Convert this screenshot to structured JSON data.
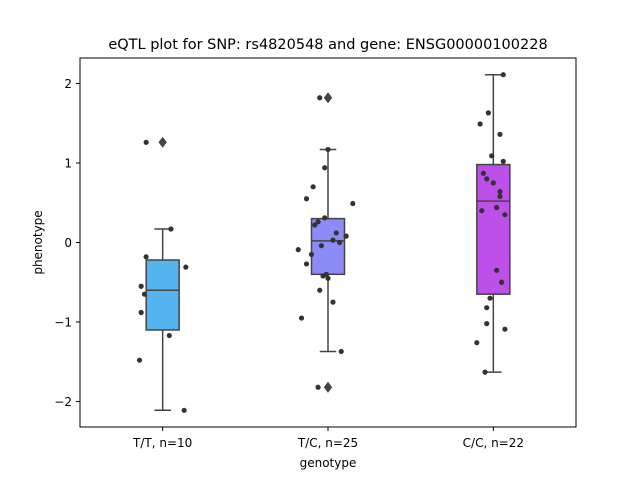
{
  "chart_data": {
    "type": "box",
    "title": "eQTL plot for SNP: rs4820548 and gene: ENSG00000100228",
    "xlabel": "genotype",
    "ylabel": "phenotype",
    "ylim": [
      -2.32,
      2.32
    ],
    "yticks": [
      2,
      1,
      0,
      -1,
      -2
    ],
    "ytick_labels": [
      "2",
      "1",
      "0",
      "−1",
      "−2"
    ],
    "grid": false,
    "categories": [
      "T/T, n=10",
      "T/C, n=25",
      "C/C, n=22"
    ],
    "colors": {
      "box_fills": [
        "#55b4ee",
        "#8d8cf6",
        "#bc50e8"
      ],
      "box_lines": "#444444",
      "points": "#333333",
      "axes": "#000000"
    },
    "boxes": [
      {
        "category": "T/T, n=10",
        "whisker_low": -2.11,
        "q1": -1.1,
        "median": -0.6,
        "q3": -0.22,
        "whisker_high": 0.17,
        "outliers": [
          1.26
        ]
      },
      {
        "category": "T/C, n=25",
        "whisker_low": -1.37,
        "q1": -0.4,
        "median": 0.02,
        "q3": 0.3,
        "whisker_high": 1.17,
        "outliers": [
          1.82,
          -1.82
        ]
      },
      {
        "category": "C/C, n=22",
        "whisker_low": -1.63,
        "q1": -0.65,
        "median": 0.52,
        "q3": 0.98,
        "whisker_high": 2.11,
        "outliers": []
      }
    ],
    "points": [
      [
        {
          "x": -0.1,
          "y": 1.26
        },
        {
          "x": 0.05,
          "y": 0.17
        },
        {
          "x": -0.1,
          "y": -0.18
        },
        {
          "x": 0.14,
          "y": -0.31
        },
        {
          "x": -0.13,
          "y": -0.55
        },
        {
          "x": -0.11,
          "y": -0.65
        },
        {
          "x": -0.13,
          "y": -0.88
        },
        {
          "x": 0.04,
          "y": -1.17
        },
        {
          "x": -0.14,
          "y": -1.48
        },
        {
          "x": 0.13,
          "y": -2.11
        }
      ],
      [
        {
          "x": -0.05,
          "y": 1.82
        },
        {
          "x": 0.0,
          "y": 1.17
        },
        {
          "x": -0.02,
          "y": 0.94
        },
        {
          "x": -0.09,
          "y": 0.7
        },
        {
          "x": -0.13,
          "y": 0.55
        },
        {
          "x": 0.15,
          "y": 0.49
        },
        {
          "x": -0.02,
          "y": 0.31
        },
        {
          "x": -0.06,
          "y": 0.26
        },
        {
          "x": -0.08,
          "y": 0.22
        },
        {
          "x": 0.05,
          "y": 0.12
        },
        {
          "x": 0.11,
          "y": 0.08
        },
        {
          "x": 0.03,
          "y": 0.03
        },
        {
          "x": 0.07,
          "y": 0.0
        },
        {
          "x": -0.04,
          "y": -0.04
        },
        {
          "x": -0.18,
          "y": -0.09
        },
        {
          "x": -0.1,
          "y": -0.15
        },
        {
          "x": -0.13,
          "y": -0.27
        },
        {
          "x": -0.01,
          "y": -0.4
        },
        {
          "x": -0.03,
          "y": -0.42
        },
        {
          "x": 0.0,
          "y": -0.45
        },
        {
          "x": -0.05,
          "y": -0.6
        },
        {
          "x": 0.03,
          "y": -0.75
        },
        {
          "x": -0.16,
          "y": -0.95
        },
        {
          "x": 0.08,
          "y": -1.37
        },
        {
          "x": -0.06,
          "y": -1.82
        }
      ],
      [
        {
          "x": 0.06,
          "y": 2.11
        },
        {
          "x": -0.03,
          "y": 1.63
        },
        {
          "x": -0.08,
          "y": 1.49
        },
        {
          "x": 0.04,
          "y": 1.36
        },
        {
          "x": -0.01,
          "y": 1.09
        },
        {
          "x": 0.06,
          "y": 1.02
        },
        {
          "x": -0.06,
          "y": 0.87
        },
        {
          "x": -0.04,
          "y": 0.8
        },
        {
          "x": 0.0,
          "y": 0.75
        },
        {
          "x": 0.04,
          "y": 0.64
        },
        {
          "x": 0.04,
          "y": 0.58
        },
        {
          "x": 0.02,
          "y": 0.44
        },
        {
          "x": -0.07,
          "y": 0.4
        },
        {
          "x": 0.07,
          "y": 0.35
        },
        {
          "x": 0.02,
          "y": -0.35
        },
        {
          "x": 0.05,
          "y": -0.5
        },
        {
          "x": -0.02,
          "y": -0.7
        },
        {
          "x": -0.04,
          "y": -0.82
        },
        {
          "x": -0.04,
          "y": -1.02
        },
        {
          "x": 0.07,
          "y": -1.09
        },
        {
          "x": -0.1,
          "y": -1.26
        },
        {
          "x": -0.05,
          "y": -1.63
        }
      ]
    ]
  }
}
